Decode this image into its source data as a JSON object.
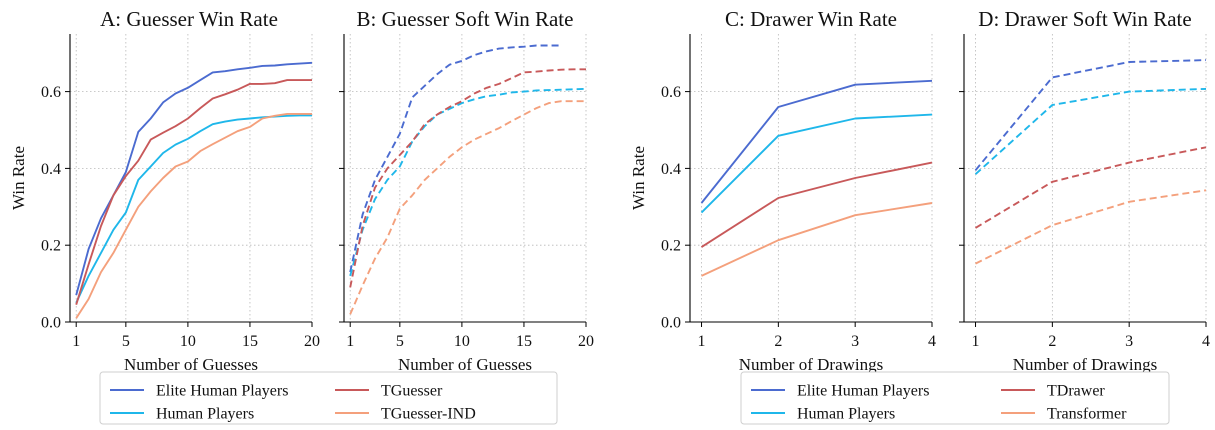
{
  "colors": {
    "elite": "#4b6bd0",
    "human": "#1fb7ea",
    "model": "#c8595a",
    "baseline": "#f4a07c"
  },
  "legends": [
    {
      "entries": [
        {
          "label": "Elite Human Players",
          "color": "#4b6bd0"
        },
        {
          "label": "Human Players",
          "color": "#1fb7ea"
        },
        {
          "label": "TGuesser",
          "color": "#c8595a"
        },
        {
          "label": "TGuesser-IND",
          "color": "#f4a07c"
        }
      ]
    },
    {
      "entries": [
        {
          "label": "Elite Human Players",
          "color": "#4b6bd0"
        },
        {
          "label": "Human Players",
          "color": "#1fb7ea"
        },
        {
          "label": "TDrawer",
          "color": "#c8595a"
        },
        {
          "label": "Transformer",
          "color": "#f4a07c"
        }
      ]
    }
  ],
  "chart_data": [
    {
      "type": "line",
      "title": "A: Guesser Win Rate",
      "xlabel": "Number of Guesses",
      "ylabel": "Win Rate",
      "xlim": [
        0.5,
        20
      ],
      "ylim": [
        0,
        0.75
      ],
      "xticks": [
        1,
        5,
        10,
        15,
        20
      ],
      "yticks": [
        0.0,
        0.2,
        0.4,
        0.6
      ],
      "grid": true,
      "dashed": false,
      "series": [
        {
          "name": "Elite Human Players",
          "color": "#4b6bd0",
          "x": [
            1,
            2,
            3,
            4,
            5,
            6,
            7,
            8,
            9,
            10,
            11,
            12,
            13,
            14,
            15,
            16,
            17,
            18,
            19,
            20
          ],
          "y": [
            0.07,
            0.19,
            0.27,
            0.33,
            0.39,
            0.495,
            0.53,
            0.572,
            0.595,
            0.61,
            0.63,
            0.65,
            0.653,
            0.658,
            0.662,
            0.667,
            0.668,
            0.671,
            0.673,
            0.675
          ]
        },
        {
          "name": "Human Players",
          "color": "#1fb7ea",
          "x": [
            1,
            2,
            3,
            4,
            5,
            6,
            7,
            8,
            9,
            10,
            11,
            12,
            13,
            14,
            15,
            16,
            17,
            18,
            19,
            20
          ],
          "y": [
            0.05,
            0.12,
            0.18,
            0.24,
            0.285,
            0.37,
            0.405,
            0.44,
            0.462,
            0.477,
            0.497,
            0.515,
            0.522,
            0.527,
            0.53,
            0.533,
            0.535,
            0.537,
            0.538,
            0.538
          ]
        },
        {
          "name": "TGuesser",
          "color": "#c8595a",
          "x": [
            1,
            2,
            3,
            4,
            5,
            6,
            7,
            8,
            9,
            10,
            11,
            12,
            13,
            14,
            15,
            16,
            17,
            18,
            19,
            20
          ],
          "y": [
            0.045,
            0.15,
            0.25,
            0.33,
            0.38,
            0.42,
            0.475,
            0.493,
            0.51,
            0.53,
            0.557,
            0.582,
            0.593,
            0.605,
            0.62,
            0.62,
            0.622,
            0.63,
            0.63,
            0.63
          ]
        },
        {
          "name": "TGuesser-IND",
          "color": "#f4a07c",
          "x": [
            1,
            2,
            3,
            4,
            5,
            6,
            7,
            8,
            9,
            10,
            11,
            12,
            13,
            14,
            15,
            16,
            17,
            18,
            19,
            20
          ],
          "y": [
            0.01,
            0.06,
            0.13,
            0.18,
            0.24,
            0.3,
            0.34,
            0.375,
            0.405,
            0.418,
            0.445,
            0.463,
            0.48,
            0.497,
            0.508,
            0.53,
            0.537,
            0.542,
            0.542,
            0.542
          ]
        }
      ]
    },
    {
      "type": "line",
      "title": "B: Guesser Soft Win Rate",
      "xlabel": "Number of Guesses",
      "ylabel": "",
      "xlim": [
        0.5,
        20
      ],
      "ylim": [
        0,
        0.75
      ],
      "xticks": [
        1,
        5,
        10,
        15,
        20
      ],
      "yticks": [
        0.0,
        0.2,
        0.4,
        0.6
      ],
      "grid": true,
      "dashed": true,
      "series": [
        {
          "name": "Elite Human Players",
          "color": "#4b6bd0",
          "x": [
            1,
            2,
            3,
            4,
            5,
            6,
            7,
            8,
            9,
            10,
            11,
            12,
            13,
            14,
            15,
            16,
            17,
            18
          ],
          "y": [
            0.13,
            0.28,
            0.37,
            0.43,
            0.49,
            0.585,
            0.615,
            0.645,
            0.67,
            0.68,
            0.695,
            0.705,
            0.712,
            0.715,
            0.717,
            0.72,
            0.72,
            0.72
          ]
        },
        {
          "name": "Human Players",
          "color": "#1fb7ea",
          "x": [
            1,
            2,
            3,
            4,
            5,
            6,
            7,
            8,
            9,
            10,
            11,
            12,
            13,
            14,
            15,
            16,
            17,
            18,
            19,
            20
          ],
          "y": [
            0.12,
            0.24,
            0.32,
            0.37,
            0.405,
            0.47,
            0.51,
            0.54,
            0.555,
            0.57,
            0.58,
            0.588,
            0.592,
            0.598,
            0.6,
            0.603,
            0.604,
            0.605,
            0.606,
            0.607
          ]
        },
        {
          "name": "TGuesser",
          "color": "#c8595a",
          "x": [
            1,
            2,
            3,
            4,
            5,
            6,
            7,
            8,
            9,
            10,
            11,
            12,
            13,
            14,
            15,
            16,
            17,
            18,
            19,
            20
          ],
          "y": [
            0.09,
            0.25,
            0.35,
            0.4,
            0.435,
            0.47,
            0.515,
            0.54,
            0.56,
            0.575,
            0.595,
            0.61,
            0.62,
            0.635,
            0.65,
            0.652,
            0.655,
            0.657,
            0.658,
            0.658
          ]
        },
        {
          "name": "TGuesser-IND",
          "color": "#f4a07c",
          "x": [
            1,
            2,
            3,
            4,
            5,
            6,
            7,
            8,
            9,
            10,
            11,
            12,
            13,
            14,
            15,
            16,
            17,
            18,
            19,
            20
          ],
          "y": [
            0.02,
            0.095,
            0.165,
            0.22,
            0.295,
            0.33,
            0.37,
            0.4,
            0.43,
            0.455,
            0.475,
            0.49,
            0.505,
            0.523,
            0.54,
            0.557,
            0.57,
            0.575,
            0.575,
            0.575
          ]
        }
      ]
    },
    {
      "type": "line",
      "title": "C: Drawer Win Rate",
      "xlabel": "Number of Drawings",
      "ylabel": "Win Rate",
      "xlim": [
        0.85,
        4
      ],
      "ylim": [
        0,
        0.75
      ],
      "xticks": [
        1,
        2,
        3,
        4
      ],
      "yticks": [
        0.0,
        0.2,
        0.4,
        0.6
      ],
      "grid": true,
      "dashed": false,
      "series": [
        {
          "name": "Elite Human Players",
          "color": "#4b6bd0",
          "x": [
            1,
            2,
            3,
            4
          ],
          "y": [
            0.31,
            0.56,
            0.618,
            0.628
          ]
        },
        {
          "name": "Human Players",
          "color": "#1fb7ea",
          "x": [
            1,
            2,
            3,
            4
          ],
          "y": [
            0.285,
            0.485,
            0.53,
            0.54
          ]
        },
        {
          "name": "TDrawer",
          "color": "#c8595a",
          "x": [
            1,
            2,
            3,
            4
          ],
          "y": [
            0.195,
            0.323,
            0.375,
            0.415
          ]
        },
        {
          "name": "Transformer",
          "color": "#f4a07c",
          "x": [
            1,
            2,
            3,
            4
          ],
          "y": [
            0.12,
            0.213,
            0.278,
            0.31
          ]
        }
      ]
    },
    {
      "type": "line",
      "title": "D: Drawer Soft Win Rate",
      "xlabel": "Number of Drawings",
      "ylabel": "",
      "xlim": [
        0.85,
        4
      ],
      "ylim": [
        0,
        0.75
      ],
      "xticks": [
        1,
        2,
        3,
        4
      ],
      "yticks": [
        0.0,
        0.2,
        0.4,
        0.6
      ],
      "grid": true,
      "dashed": true,
      "series": [
        {
          "name": "Elite Human Players",
          "color": "#4b6bd0",
          "x": [
            1,
            2,
            3,
            4
          ],
          "y": [
            0.395,
            0.637,
            0.677,
            0.682
          ]
        },
        {
          "name": "Human Players",
          "color": "#1fb7ea",
          "x": [
            1,
            2,
            3,
            4
          ],
          "y": [
            0.385,
            0.565,
            0.6,
            0.607
          ]
        },
        {
          "name": "TDrawer",
          "color": "#c8595a",
          "x": [
            1,
            2,
            3,
            4
          ],
          "y": [
            0.245,
            0.365,
            0.415,
            0.455
          ]
        },
        {
          "name": "Transformer",
          "color": "#f4a07c",
          "x": [
            1,
            2,
            3,
            4
          ],
          "y": [
            0.152,
            0.252,
            0.313,
            0.343
          ]
        }
      ]
    }
  ]
}
